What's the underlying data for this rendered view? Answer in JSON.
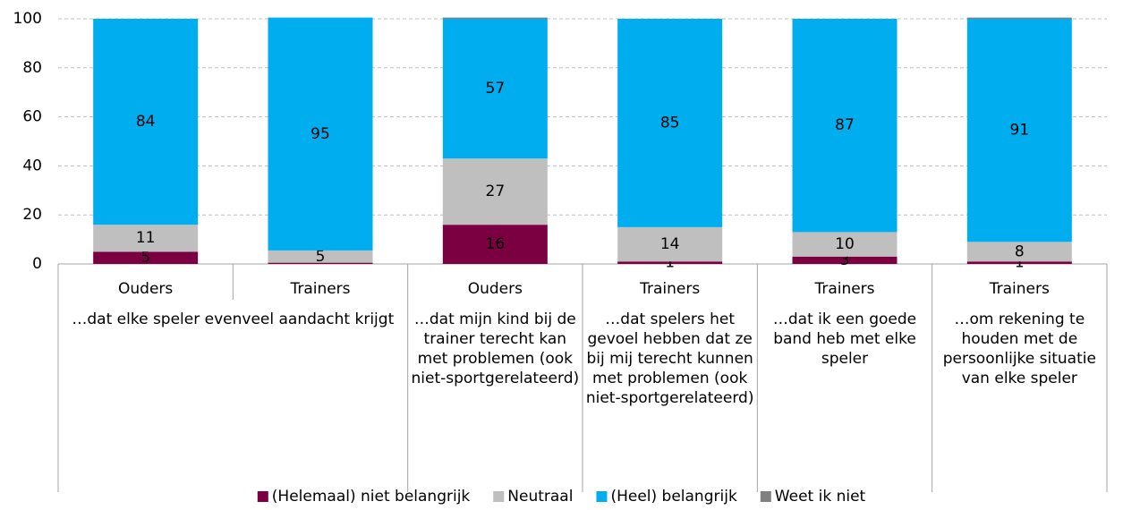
{
  "chart_data": {
    "type": "bar",
    "stacked": true,
    "categories": [
      "Ouders",
      "Trainers",
      "Ouders",
      "Trainers",
      "Trainers",
      "Trainers"
    ],
    "groups": [
      {
        "label": "…dat elke speler evenveel aandacht krijgt",
        "size": 2
      },
      {
        "label": "…dat mijn kind bij de trainer terecht kan met problemen (ook niet-sportgerelateerd)",
        "size": 1
      },
      {
        "label": "…dat spelers het gevoel hebben dat ze bij mij terecht kunnen met problemen (ook niet-sportgerelateerd)",
        "size": 1
      },
      {
        "label": "…dat ik een goede band heb met elke speler",
        "size": 1
      },
      {
        "label": "…om rekening te houden met de persoonlijke situatie van elke speler",
        "size": 1
      }
    ],
    "series": [
      {
        "name": "(Helemaal) niet belangrijk",
        "color": "#7b0041",
        "label_color": "#ffffff",
        "values": [
          5,
          0.5,
          16,
          1,
          3,
          1
        ],
        "value_labels": [
          "5",
          null,
          "16",
          "1",
          "3",
          "1"
        ]
      },
      {
        "name": "Neutraal",
        "color": "#bfbfbf",
        "label_color": "#000000",
        "values": [
          11,
          5,
          27,
          14,
          10,
          8
        ],
        "value_labels": [
          "11",
          "5",
          "27",
          "14",
          "10",
          "8"
        ]
      },
      {
        "name": "(Heel) belangrijk",
        "color": "#00aeef",
        "label_color": "#000000",
        "values": [
          84,
          95,
          57,
          85,
          87,
          91
        ],
        "value_labels": [
          "84",
          "95",
          "57",
          "85",
          "87",
          "91"
        ]
      },
      {
        "name": "Weet ik niet",
        "color": "#808080",
        "label_color": "#000000",
        "values": [
          0,
          0,
          0.5,
          0,
          0,
          0.5
        ],
        "value_labels": [
          null,
          null,
          null,
          null,
          null,
          null
        ]
      }
    ],
    "ylim": [
      0,
      100
    ],
    "yticks": [
      0,
      20,
      40,
      60,
      80,
      100
    ],
    "grid": true,
    "legend": "bottom"
  }
}
